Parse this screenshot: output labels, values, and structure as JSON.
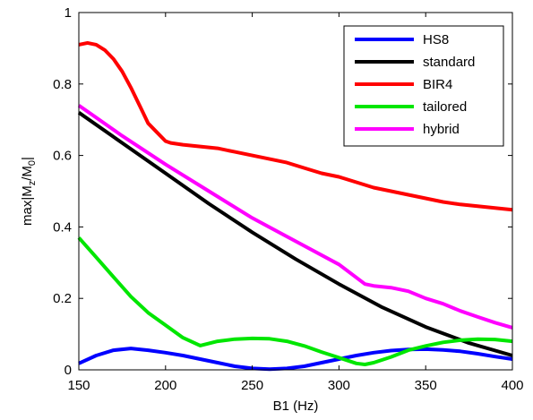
{
  "chart_data": {
    "type": "line",
    "xlabel": "B1 (Hz)",
    "ylabel": {
      "prefix": "max|M",
      "sub1": "z",
      "mid": "/M",
      "sub2": "0",
      "suffix": "|"
    },
    "xlim": [
      150,
      400
    ],
    "ylim": [
      0,
      1
    ],
    "xticks": [
      "150",
      "200",
      "250",
      "300",
      "350",
      "400"
    ],
    "yticks": [
      "0",
      "0.2",
      "0.4",
      "0.6",
      "0.8",
      "1"
    ],
    "grid": false,
    "legend_position": "top-right",
    "series": [
      {
        "name": "HS8",
        "color": "#0000ff",
        "x": [
          150,
          160,
          170,
          180,
          190,
          200,
          210,
          220,
          230,
          240,
          250,
          260,
          270,
          280,
          290,
          300,
          310,
          320,
          330,
          340,
          350,
          360,
          370,
          380,
          390,
          400
        ],
        "y": [
          0.018,
          0.04,
          0.055,
          0.06,
          0.055,
          0.048,
          0.04,
          0.03,
          0.02,
          0.01,
          0.004,
          0.002,
          0.004,
          0.01,
          0.02,
          0.03,
          0.04,
          0.048,
          0.054,
          0.057,
          0.058,
          0.056,
          0.052,
          0.045,
          0.037,
          0.03
        ]
      },
      {
        "name": "standard",
        "color": "#000000",
        "x": [
          150,
          175,
          200,
          225,
          250,
          275,
          300,
          325,
          350,
          375,
          400
        ],
        "y": [
          0.72,
          0.635,
          0.55,
          0.465,
          0.385,
          0.31,
          0.24,
          0.175,
          0.12,
          0.075,
          0.04
        ]
      },
      {
        "name": "BIR4",
        "color": "#ff0000",
        "x": [
          150,
          155,
          160,
          165,
          170,
          175,
          180,
          185,
          190,
          195,
          200,
          203,
          210,
          220,
          230,
          240,
          250,
          260,
          270,
          280,
          290,
          300,
          310,
          320,
          330,
          340,
          350,
          360,
          370,
          380,
          390,
          400
        ],
        "y": [
          0.91,
          0.915,
          0.91,
          0.895,
          0.87,
          0.835,
          0.79,
          0.74,
          0.69,
          0.665,
          0.64,
          0.635,
          0.63,
          0.625,
          0.62,
          0.61,
          0.6,
          0.59,
          0.58,
          0.565,
          0.55,
          0.54,
          0.525,
          0.51,
          0.5,
          0.49,
          0.48,
          0.47,
          0.463,
          0.458,
          0.453,
          0.448
        ]
      },
      {
        "name": "tailored",
        "color": "#00e600",
        "x": [
          150,
          160,
          170,
          180,
          190,
          200,
          210,
          220,
          230,
          240,
          250,
          260,
          270,
          280,
          290,
          300,
          310,
          315,
          320,
          330,
          340,
          350,
          360,
          370,
          380,
          390,
          400
        ],
        "y": [
          0.37,
          0.315,
          0.26,
          0.205,
          0.16,
          0.125,
          0.09,
          0.068,
          0.08,
          0.086,
          0.088,
          0.087,
          0.08,
          0.067,
          0.05,
          0.034,
          0.018,
          0.015,
          0.02,
          0.036,
          0.055,
          0.067,
          0.077,
          0.083,
          0.086,
          0.085,
          0.08
        ]
      },
      {
        "name": "hybrid",
        "color": "#ff00ff",
        "x": [
          150,
          175,
          200,
          225,
          250,
          275,
          300,
          315,
          320,
          330,
          340,
          350,
          360,
          370,
          380,
          390,
          400
        ],
        "y": [
          0.74,
          0.655,
          0.575,
          0.5,
          0.425,
          0.36,
          0.295,
          0.24,
          0.235,
          0.23,
          0.22,
          0.2,
          0.185,
          0.165,
          0.148,
          0.132,
          0.118
        ]
      }
    ]
  }
}
